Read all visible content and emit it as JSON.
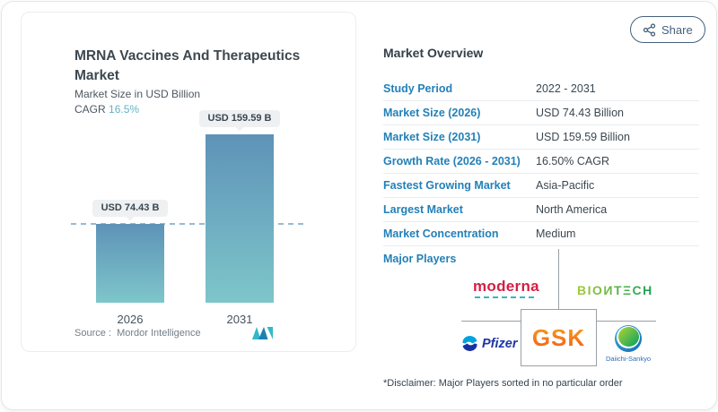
{
  "header": {
    "share_label": "Share"
  },
  "chart": {
    "title": "MRNA Vaccines And Therapeutics Market",
    "subtitle": "Market Size in USD Billion",
    "cagr_label": "CAGR",
    "cagr_value": "16.5%",
    "source_label": "Source :",
    "source_value": "Mordor Intelligence"
  },
  "chart_data": {
    "type": "bar",
    "categories": [
      "2026",
      "2031"
    ],
    "values": [
      74.43,
      159.59
    ],
    "bar_labels": [
      "USD 74.43 B",
      "USD 159.59 B"
    ],
    "title": "MRNA Vaccines And Therapeutics Market",
    "ylabel": "Market Size in USD Billion",
    "cagr": "16.5%",
    "baseline_dashed_at": 74.43,
    "legend": "none",
    "grid": "off",
    "colors": {
      "bar_top": "#5e93b8",
      "bar_bottom": "#7ec6ca",
      "dashed_line": "#97bad4"
    }
  },
  "overview": {
    "title": "Market Overview",
    "rows": [
      {
        "label": "Study Period",
        "value": "2022 - 2031"
      },
      {
        "label": "Market Size (2026)",
        "value": "USD 74.43 Billion"
      },
      {
        "label": "Market Size (2031)",
        "value": "USD 159.59 Billion"
      },
      {
        "label": "Growth Rate (2026 - 2031)",
        "value": "16.50% CAGR"
      },
      {
        "label": "Fastest Growing Market",
        "value": "Asia-Pacific"
      },
      {
        "label": "Largest Market",
        "value": "North America"
      },
      {
        "label": "Market Concentration",
        "value": "Medium"
      },
      {
        "label": "Major Players",
        "value": ""
      }
    ],
    "major_players": [
      "Moderna",
      "BioNTech",
      "Pfizer",
      "GSK",
      "Daiichi-Sankyo"
    ],
    "logos": {
      "moderna": "moderna",
      "biontech": "BIOИTΞCH",
      "pfizer": "Pfizer",
      "gsk": "GSK",
      "daiichi": "Daiichi-Sankyo"
    },
    "disclaimer": "*Disclaimer: Major Players sorted in no particular order"
  },
  "colors": {
    "label_blue": "#2380b8",
    "accent_teal": "#65b2c7",
    "moderna_red": "#d41f44",
    "gsk_orange": "#f36f21"
  }
}
